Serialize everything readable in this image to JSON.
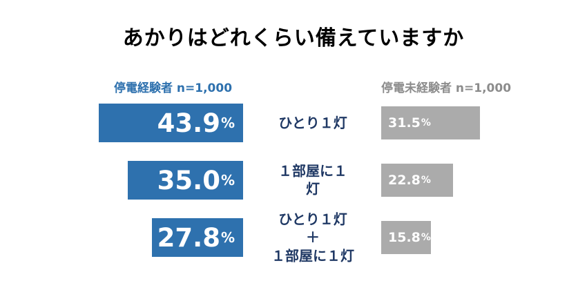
{
  "title": "あかりはどれくらい備えていますか",
  "headers": {
    "left": "停電経験者 n=1,000",
    "right": "停電未経験者 n=1,000"
  },
  "colors": {
    "experienced_bar": "#2E71AE",
    "non_experienced_bar": "#ABABAB",
    "category_label": "#1F3864",
    "header_left": "#2E71AE",
    "header_right": "#8C8C8C",
    "bar_text": "#FFFFFF",
    "title_text": "#000000"
  },
  "chart_data": {
    "type": "bar",
    "orientation": "horizontal",
    "layout": "paired-opposed-bars",
    "title": "あかりはどれくらい備えていますか",
    "unit": "%",
    "categories": [
      "ひとり１灯",
      "１部屋に１灯",
      "ひとり１灯＋１部屋に１灯"
    ],
    "categories_display": [
      "ひとり１灯",
      "１部屋に１\n灯",
      "ひとり１灯\n＋\n１部屋に１灯"
    ],
    "series": [
      {
        "name": "停電経験者",
        "n_label": "n=1,000",
        "values": [
          43.9,
          35.0,
          27.8
        ],
        "values_display": [
          "43.9",
          "35.0",
          "27.8"
        ],
        "color": "#2E71AE"
      },
      {
        "name": "停電未経験者",
        "n_label": "n=1,000",
        "values": [
          31.5,
          22.8,
          15.8
        ],
        "values_display": [
          "31.5",
          "22.8",
          "15.8"
        ],
        "color": "#ABABAB"
      }
    ],
    "xlim": [
      0,
      50
    ],
    "grid": false,
    "legend_position": "top-as-column-headers"
  }
}
